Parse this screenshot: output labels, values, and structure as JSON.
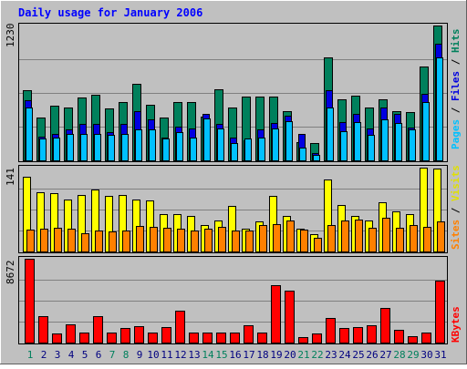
{
  "chart_data": {
    "type": "bar",
    "title": "Daily usage for January 2006",
    "categories": [
      "1",
      "2",
      "3",
      "4",
      "5",
      "6",
      "7",
      "8",
      "9",
      "10",
      "11",
      "12",
      "13",
      "14",
      "15",
      "16",
      "17",
      "18",
      "19",
      "20",
      "21",
      "22",
      "23",
      "24",
      "25",
      "26",
      "27",
      "28",
      "29",
      "30",
      "31"
    ],
    "weekend_days": [
      "1",
      "7",
      "8",
      "14",
      "15",
      "21",
      "22",
      "28",
      "29"
    ],
    "panels": [
      {
        "id": "hits-files-pages",
        "max_label": "1230",
        "ylim": [
          0,
          1230
        ],
        "axis_labels": [
          "Pages",
          "Files",
          "Hits"
        ],
        "series": [
          {
            "name": "Hits",
            "color": "#00805c",
            "values": [
              640,
              390,
              500,
              480,
              570,
              600,
              470,
              530,
              700,
              510,
              390,
              530,
              530,
              400,
              650,
              480,
              580,
              580,
              580,
              450,
              170,
              160,
              940,
              560,
              590,
              480,
              560,
              450,
              440,
              860,
              1230
            ]
          },
          {
            "name": "Files",
            "color": "#0000e0",
            "values": [
              550,
              220,
              240,
              280,
              330,
              330,
              260,
              330,
              450,
              370,
              210,
              310,
              290,
              420,
              330,
              210,
              180,
              280,
              340,
              410,
              240,
              70,
              640,
              350,
              420,
              290,
              480,
              420,
              300,
              610,
              1060
            ]
          },
          {
            "name": "Pages",
            "color": "#00c0ff",
            "values": [
              480,
              200,
              210,
              240,
              240,
              240,
              230,
              240,
              280,
              280,
              200,
              260,
              210,
              380,
              290,
              160,
              200,
              210,
              290,
              360,
              120,
              50,
              480,
              270,
              350,
              230,
              370,
              340,
              280,
              530,
              940
            ]
          }
        ]
      },
      {
        "id": "visits-sites",
        "max_label": "141",
        "ylim": [
          0,
          141
        ],
        "axis_labels": [
          "Sites",
          "Visits"
        ],
        "series": [
          {
            "name": "Visits",
            "color": "#ffff00",
            "values": [
              126,
              99,
              98,
              88,
              95,
              104,
              94,
              95,
              87,
              86,
              63,
              63,
              60,
              45,
              52,
              77,
              39,
              50,
              94,
              60,
              38,
              29,
              121,
              78,
              60,
              52,
              82,
              67,
              63,
              141,
              140
            ]
          },
          {
            "name": "Sites",
            "color": "#ff8000",
            "values": [
              37,
              38,
              40,
              39,
              30,
              36,
              34,
              36,
              43,
              42,
              40,
              38,
              36,
              38,
              42,
              35,
              35,
              44,
              46,
              52,
              37,
              23,
              44,
              52,
              54,
              40,
              56,
              40,
              44,
              42,
              50
            ]
          }
        ]
      },
      {
        "id": "kbytes",
        "max_label": "8672",
        "ylim": [
          0,
          8672
        ],
        "axis_labels": [
          "KBytes"
        ],
        "series": [
          {
            "name": "KBytes",
            "color": "#ff0000",
            "values": [
              8672,
              2700,
              900,
              1900,
              1000,
              2700,
              1000,
              1500,
              1700,
              1000,
              1600,
              3300,
              1000,
              1000,
              1000,
              1000,
              1800,
              1000,
              5900,
              5400,
              600,
              900,
              2500,
              1500,
              1600,
              1800,
              3600,
              1300,
              700,
              1000,
              6400
            ]
          }
        ]
      }
    ]
  },
  "colors": {
    "background": "#c0c0c0",
    "title_text": "#0000ff",
    "weekday_label": "#000080",
    "weekend_label": "#00805c",
    "gridline": "#808080"
  }
}
